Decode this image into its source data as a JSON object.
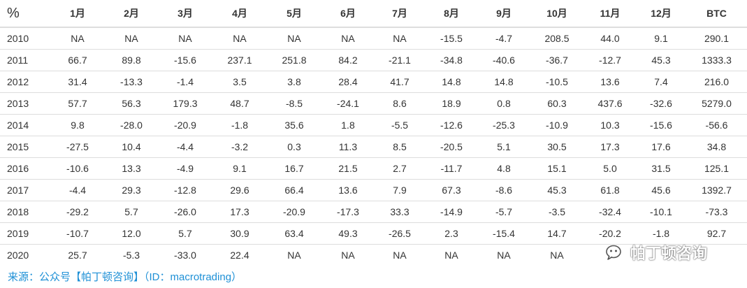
{
  "chart_data": {
    "type": "table",
    "corner_label": "%",
    "columns": [
      "1月",
      "2月",
      "3月",
      "4月",
      "5月",
      "6月",
      "7月",
      "8月",
      "9月",
      "10月",
      "11月",
      "12月",
      "BTC"
    ],
    "rows": [
      {
        "year": "2010",
        "values": [
          "NA",
          "NA",
          "NA",
          "NA",
          "NA",
          "NA",
          "NA",
          "-15.5",
          "-4.7",
          "208.5",
          "44.0",
          "9.1",
          "290.1"
        ]
      },
      {
        "year": "2011",
        "values": [
          "66.7",
          "89.8",
          "-15.6",
          "237.1",
          "251.8",
          "84.2",
          "-21.1",
          "-34.8",
          "-40.6",
          "-36.7",
          "-12.7",
          "45.3",
          "1333.3"
        ]
      },
      {
        "year": "2012",
        "values": [
          "31.4",
          "-13.3",
          "-1.4",
          "3.5",
          "3.8",
          "28.4",
          "41.7",
          "14.8",
          "14.8",
          "-10.5",
          "13.6",
          "7.4",
          "216.0"
        ]
      },
      {
        "year": "2013",
        "values": [
          "57.7",
          "56.3",
          "179.3",
          "48.7",
          "-8.5",
          "-24.1",
          "8.6",
          "18.9",
          "0.8",
          "60.3",
          "437.6",
          "-32.6",
          "5279.0"
        ]
      },
      {
        "year": "2014",
        "values": [
          "9.8",
          "-28.0",
          "-20.9",
          "-1.8",
          "35.6",
          "1.8",
          "-5.5",
          "-12.6",
          "-25.3",
          "-10.9",
          "10.3",
          "-15.6",
          "-56.6"
        ]
      },
      {
        "year": "2015",
        "values": [
          "-27.5",
          "10.4",
          "-4.4",
          "-3.2",
          "0.3",
          "11.3",
          "8.5",
          "-20.5",
          "5.1",
          "30.5",
          "17.3",
          "17.6",
          "34.8"
        ]
      },
      {
        "year": "2016",
        "values": [
          "-10.6",
          "13.3",
          "-4.9",
          "9.1",
          "16.7",
          "21.5",
          "2.7",
          "-11.7",
          "4.8",
          "15.1",
          "5.0",
          "31.5",
          "125.1"
        ]
      },
      {
        "year": "2017",
        "values": [
          "-4.4",
          "29.3",
          "-12.8",
          "29.6",
          "66.4",
          "13.6",
          "7.9",
          "67.3",
          "-8.6",
          "45.3",
          "61.8",
          "45.6",
          "1392.7"
        ]
      },
      {
        "year": "2018",
        "values": [
          "-29.2",
          "5.7",
          "-26.0",
          "17.3",
          "-20.9",
          "-17.3",
          "33.3",
          "-14.9",
          "-5.7",
          "-3.5",
          "-32.4",
          "-10.1",
          "-73.3"
        ]
      },
      {
        "year": "2019",
        "values": [
          "-10.7",
          "12.0",
          "5.7",
          "30.9",
          "63.4",
          "49.3",
          "-26.5",
          "2.3",
          "-15.4",
          "14.7",
          "-20.2",
          "-1.8",
          "92.7"
        ]
      },
      {
        "year": "2020",
        "values": [
          "25.7",
          "-5.3",
          "-33.0",
          "22.4",
          "NA",
          "NA",
          "NA",
          "NA",
          "NA",
          "NA",
          "",
          "",
          ""
        ]
      }
    ]
  },
  "source_note": "来源：公众号【帕丁顿咨询】（ID：macrotrading）",
  "watermark_text": "帕丁顿咨询",
  "watermark_icon": "wechat-official-account-icon",
  "colors": {
    "source_text": "#1e90d6",
    "grid_line": "#dddddd",
    "text": "#333333"
  }
}
